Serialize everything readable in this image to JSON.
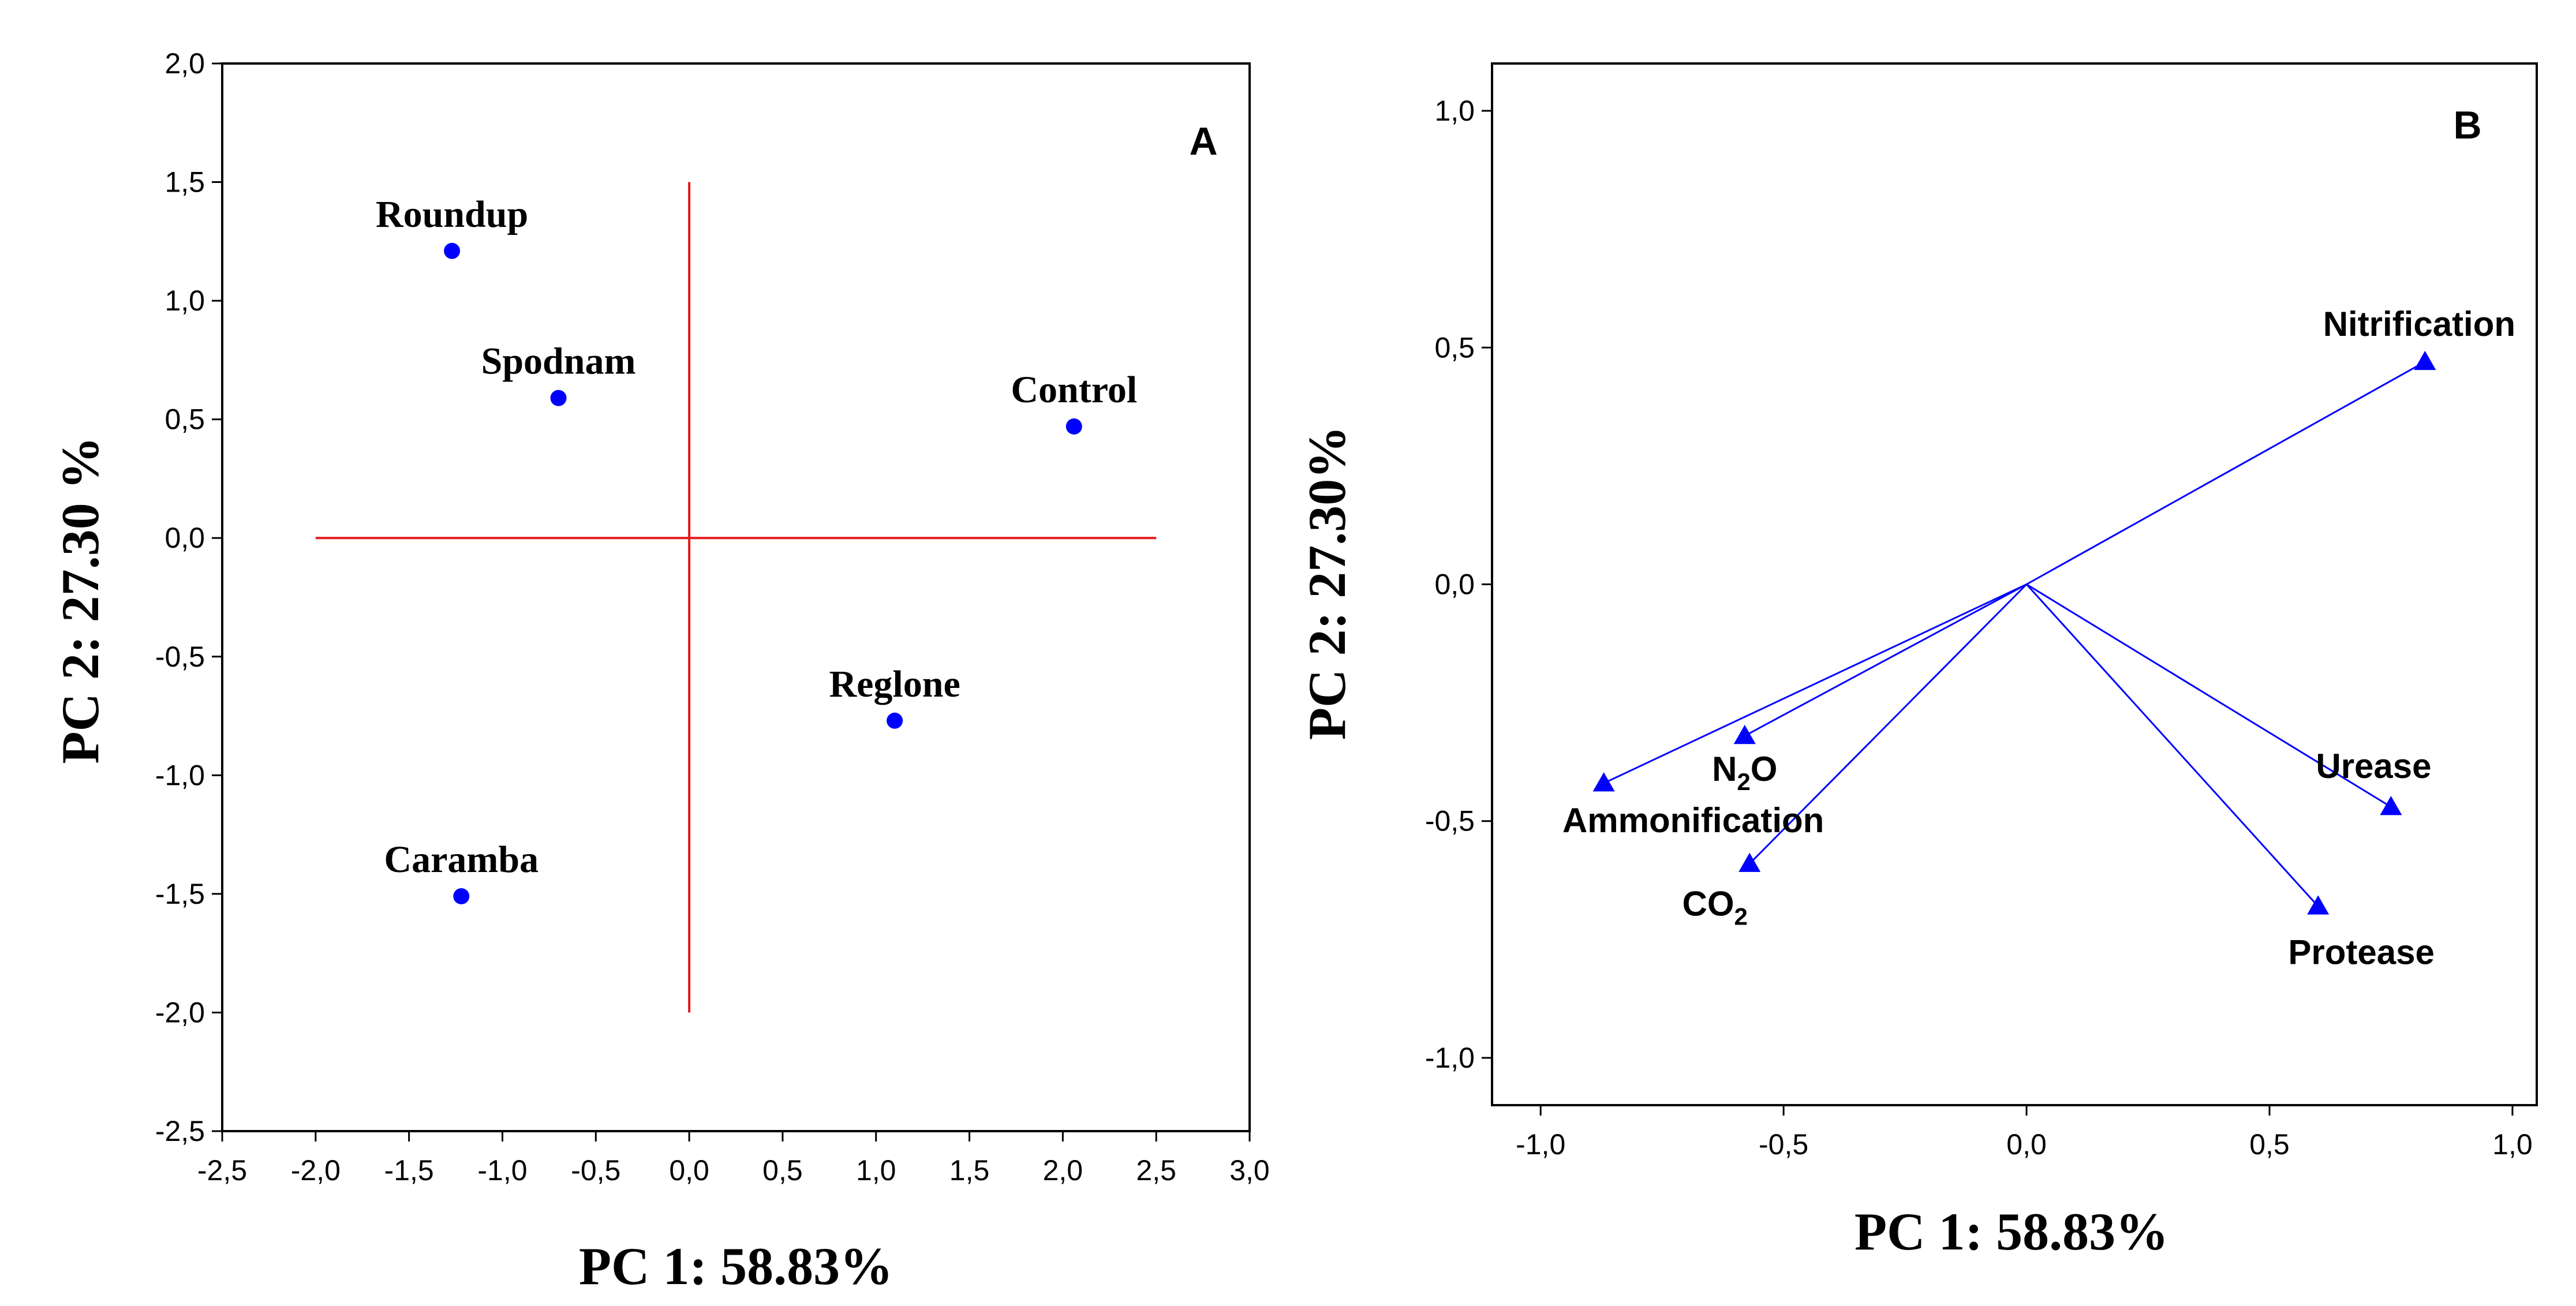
{
  "chart_data": [
    {
      "type": "scatter",
      "panel_label": "A",
      "xlabel": "PC 1: 58.83%",
      "ylabel": "PC 2: 27.30 %",
      "xlim": [
        -2.5,
        3.0
      ],
      "ylim": [
        -2.5,
        2.0
      ],
      "xticks": [
        "-2,5",
        "-2,0",
        "-1,5",
        "-1,0",
        "-0,5",
        "0,0",
        "0,5",
        "1,0",
        "1,5",
        "2,0",
        "2,5",
        "3,0"
      ],
      "yticks": [
        "2,0",
        "1,5",
        "1,0",
        "0,5",
        "0,0",
        "-0,5",
        "-1,0",
        "-1,5",
        "-2,0",
        "-2,5"
      ],
      "grid": false,
      "reference_lines": {
        "color": "#e31a1c",
        "horizontal": {
          "y": 0.0,
          "x_from": -2.0,
          "x_to": 2.5
        },
        "vertical": {
          "x": 0.0,
          "y_from": -2.0,
          "y_to": 1.5
        }
      },
      "marker_color": "#0000ff",
      "points": [
        {
          "label": "Roundup",
          "x": -1.27,
          "y": 1.21
        },
        {
          "label": "Spodnam",
          "x": -0.7,
          "y": 0.59
        },
        {
          "label": "Control",
          "x": 2.06,
          "y": 0.47
        },
        {
          "label": "Reglone",
          "x": 1.1,
          "y": -0.77
        },
        {
          "label": "Caramba",
          "x": -1.22,
          "y": -1.51
        }
      ]
    },
    {
      "type": "scatter",
      "panel_label": "B",
      "xlabel": "PC 1: 58.83%",
      "ylabel": "PC 2: 27.30%",
      "xlim": [
        -1.1,
        1.05
      ],
      "ylim": [
        -1.1,
        1.1
      ],
      "xticks": [
        "-1,0",
        "-0,5",
        "0,0",
        "0,5",
        "1,0"
      ],
      "yticks": [
        "1,0",
        "0,5",
        "0,0",
        "-0,5",
        "-1,0"
      ],
      "grid": false,
      "vectors_from_origin": true,
      "marker_color": "#0000ff",
      "points": [
        {
          "label": "Nitrification",
          "x": 0.82,
          "y": 0.47
        },
        {
          "label": "Urease",
          "x": 0.75,
          "y": -0.47
        },
        {
          "label": "Protease",
          "x": 0.6,
          "y": -0.68
        },
        {
          "label": "N2O",
          "label_main": "N",
          "label_sub": "2",
          "label_tail": "O",
          "x": -0.58,
          "y": -0.32
        },
        {
          "label": "Ammonification",
          "x": -0.87,
          "y": -0.42
        },
        {
          "label": "CO2",
          "label_main": "CO",
          "label_sub": "2",
          "label_tail": "",
          "x": -0.57,
          "y": -0.59
        }
      ]
    }
  ]
}
